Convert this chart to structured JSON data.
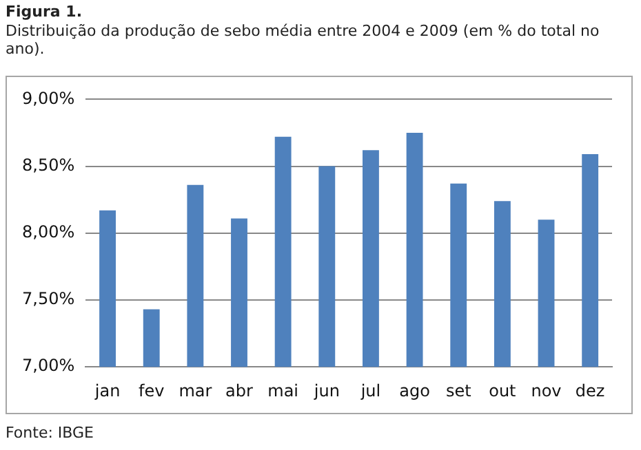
{
  "chart_data": {
    "type": "bar",
    "title": "Figura 1.",
    "subtitle": "Distribuição da produção de sebo média entre 2004 e 2009 (em % do total no ano).",
    "categories": [
      "jan",
      "fev",
      "mar",
      "abr",
      "mai",
      "jun",
      "jul",
      "ago",
      "set",
      "out",
      "nov",
      "dez"
    ],
    "values": [
      8.17,
      7.43,
      8.36,
      8.11,
      8.72,
      8.5,
      8.62,
      8.75,
      8.37,
      8.24,
      8.1,
      8.59
    ],
    "color": "#4f81bd",
    "ylim": [
      7,
      9
    ],
    "yticks": [
      {
        "value": 7,
        "label": "7,00%"
      },
      {
        "value": 7.5,
        "label": "7,50%"
      },
      {
        "value": 8,
        "label": "8,00%"
      },
      {
        "value": 8.5,
        "label": "8,50%"
      },
      {
        "value": 9,
        "label": "9,00%"
      }
    ],
    "grid": "y",
    "legend": false,
    "annotations": [
      "Fonte: IBGE"
    ]
  }
}
